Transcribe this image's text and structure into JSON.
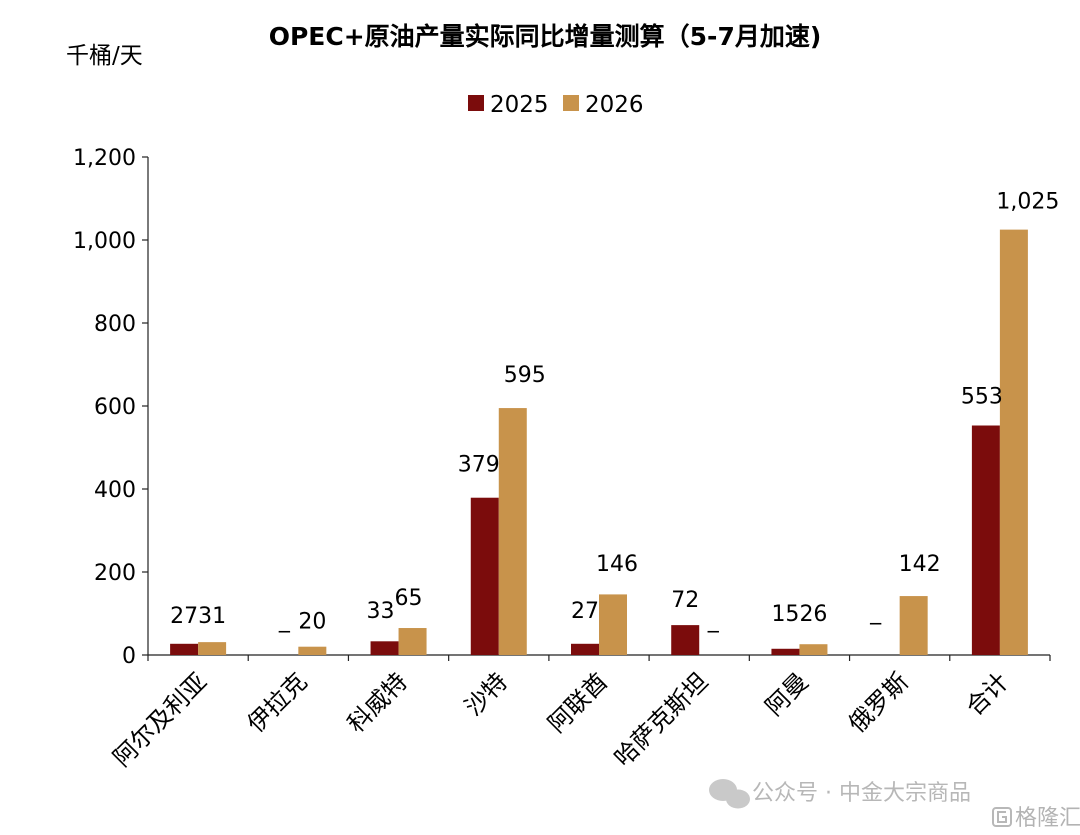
{
  "chart_data": {
    "type": "bar",
    "title": "OPEC+原油产量实际同比增量测算（5-7月加速)",
    "ylabel": "千桶/天",
    "xlabel": "",
    "ylim": [
      0,
      1200
    ],
    "yticks": [
      0,
      200,
      400,
      600,
      800,
      1000,
      1200
    ],
    "ytick_labels": [
      "0",
      "200",
      "400",
      "600",
      "800",
      "1,000",
      "1,200"
    ],
    "legend_position": "top-center",
    "categories": [
      "阿尔及利亚",
      "伊拉克",
      "科威特",
      "沙特",
      "阿联酋",
      "哈萨克斯坦",
      "阿曼",
      "俄罗斯",
      "合计"
    ],
    "series": [
      {
        "name": "2025",
        "color": "#7B0C0C",
        "values": [
          27,
          null,
          33,
          379,
          27,
          72,
          15,
          null,
          553
        ],
        "labels": [
          "27",
          "_",
          "33",
          "379",
          "27",
          "72",
          "15",
          "_",
          "553"
        ]
      },
      {
        "name": "2026",
        "color": "#C8934B",
        "values": [
          31,
          20,
          65,
          595,
          146,
          null,
          26,
          142,
          1025
        ],
        "labels": [
          "31",
          "20",
          "65",
          "595",
          "146",
          "_",
          "26",
          "142",
          "1,025"
        ]
      }
    ]
  },
  "watermark": {
    "text_main": "公众号 · 中金大宗商品",
    "text_corner": "格隆汇"
  }
}
